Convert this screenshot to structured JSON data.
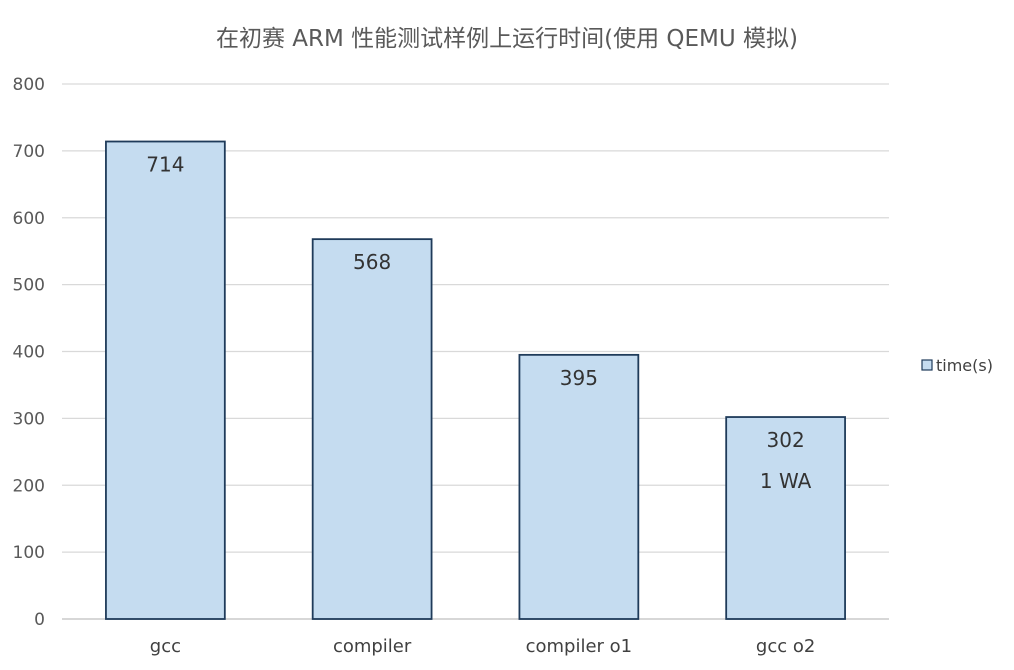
{
  "chart_data": {
    "type": "bar",
    "title": "在初赛 ARM 性能测试样例上运行时间(使用 QEMU 模拟)",
    "categories": [
      "gcc",
      "compiler",
      "compiler o1",
      "gcc o2"
    ],
    "series": [
      {
        "name": "time(s)",
        "values": [
          714,
          568,
          395,
          302
        ],
        "color": "#c5dcf0",
        "border": "#1f3b5a"
      }
    ],
    "data_labels": [
      "714",
      "568",
      "395",
      "302"
    ],
    "annotations": [
      {
        "category": "gcc o2",
        "text": "1 WA"
      }
    ],
    "yticks": [
      0,
      100,
      200,
      300,
      400,
      500,
      600,
      700,
      800
    ],
    "ylim": [
      0,
      800
    ],
    "xlabel": "",
    "ylabel": "",
    "grid": true,
    "legend": {
      "position": "right"
    }
  }
}
